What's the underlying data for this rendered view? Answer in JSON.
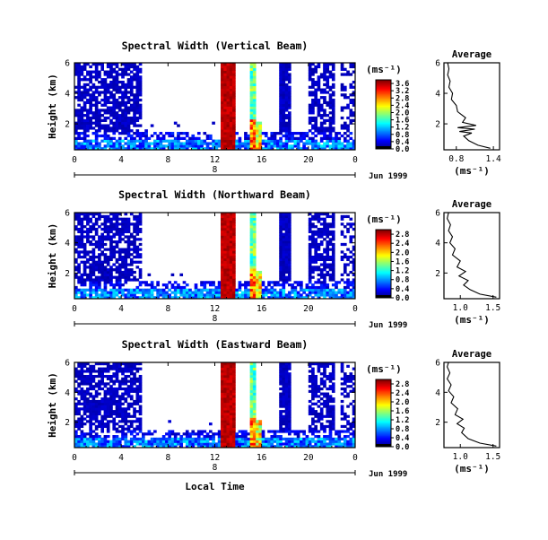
{
  "chart_data": [
    {
      "type": "heatmap",
      "title": "Spectral Width (Vertical Beam)",
      "ylabel": "Height (km)",
      "xticks": [
        "0",
        "4",
        "8",
        "12",
        "16",
        "20",
        "0"
      ],
      "yticks": [
        "2",
        "4",
        "6"
      ],
      "day_label": "8",
      "date_label": "Jun 1999",
      "colorbar": {
        "unit": "(ms⁻¹)",
        "ticks": [
          "0.0",
          "0.4",
          "0.8",
          "1.2",
          "1.6",
          "2.0",
          "2.4",
          "2.8",
          "3.2",
          "3.6"
        ],
        "max": 3.8
      },
      "average": {
        "title": "Average",
        "xlabel": "(ms⁻¹)",
        "xticks": [
          "0.8",
          "1.4"
        ],
        "xlim": [
          0.6,
          1.5
        ],
        "yticks": [
          "2",
          "4",
          "6"
        ],
        "ylim": [
          0.3,
          6
        ],
        "profile": [
          [
            1.35,
            0.4
          ],
          [
            1.15,
            0.6
          ],
          [
            1.0,
            0.9
          ],
          [
            0.92,
            1.2
          ],
          [
            1.05,
            1.4
          ],
          [
            0.85,
            1.5
          ],
          [
            1.1,
            1.65
          ],
          [
            0.82,
            1.75
          ],
          [
            1.12,
            1.9
          ],
          [
            0.9,
            2.1
          ],
          [
            0.95,
            2.4
          ],
          [
            0.82,
            2.8
          ],
          [
            0.8,
            3.2
          ],
          [
            0.72,
            3.6
          ],
          [
            0.74,
            4.0
          ],
          [
            0.68,
            4.4
          ],
          [
            0.7,
            4.8
          ],
          [
            0.66,
            5.2
          ],
          [
            0.68,
            5.6
          ],
          [
            0.66,
            6.0
          ]
        ]
      }
    },
    {
      "type": "heatmap",
      "title": "Spectral Width (Northward Beam)",
      "ylabel": "Height (km)",
      "xticks": [
        "0",
        "4",
        "8",
        "12",
        "16",
        "20",
        "0"
      ],
      "yticks": [
        "2",
        "4",
        "6"
      ],
      "day_label": "8",
      "date_label": "Jun 1999",
      "colorbar": {
        "unit": "(ms⁻¹)",
        "ticks": [
          "0.0",
          "0.4",
          "0.8",
          "1.2",
          "1.6",
          "2.0",
          "2.4",
          "2.8"
        ],
        "max": 3.0
      },
      "average": {
        "title": "Average",
        "xlabel": "(ms⁻¹)",
        "xticks": [
          "1.0",
          "1.5"
        ],
        "xlim": [
          0.75,
          1.6
        ],
        "yticks": [
          "2",
          "4",
          "6"
        ],
        "ylim": [
          0.3,
          6
        ],
        "profile": [
          [
            1.55,
            0.4
          ],
          [
            1.3,
            0.6
          ],
          [
            1.15,
            0.9
          ],
          [
            1.05,
            1.2
          ],
          [
            1.12,
            1.5
          ],
          [
            0.98,
            1.8
          ],
          [
            1.08,
            2.1
          ],
          [
            0.95,
            2.4
          ],
          [
            1.0,
            2.8
          ],
          [
            0.88,
            3.2
          ],
          [
            0.92,
            3.6
          ],
          [
            0.84,
            4.0
          ],
          [
            0.88,
            4.4
          ],
          [
            0.82,
            4.8
          ],
          [
            0.85,
            5.2
          ],
          [
            0.8,
            5.6
          ],
          [
            0.82,
            6.0
          ]
        ]
      }
    },
    {
      "type": "heatmap",
      "title": "Spectral Width (Eastward Beam)",
      "ylabel": "Height (km)",
      "xticks": [
        "0",
        "4",
        "8",
        "12",
        "16",
        "20",
        "0"
      ],
      "yticks": [
        "2",
        "4",
        "6"
      ],
      "day_label": "8",
      "date_label": "Jun 1999",
      "xlabel": "Local Time",
      "colorbar": {
        "unit": "(ms⁻¹)",
        "ticks": [
          "0.0",
          "0.4",
          "0.8",
          "1.2",
          "1.6",
          "2.0",
          "2.4",
          "2.8"
        ],
        "max": 3.0
      },
      "average": {
        "title": "Average",
        "xlabel": "(ms⁻¹)",
        "xticks": [
          "1.0",
          "1.5"
        ],
        "xlim": [
          0.75,
          1.6
        ],
        "yticks": [
          "2",
          "4",
          "6"
        ],
        "ylim": [
          0.3,
          6
        ],
        "profile": [
          [
            1.55,
            0.4
          ],
          [
            1.3,
            0.6
          ],
          [
            1.12,
            0.9
          ],
          [
            1.02,
            1.3
          ],
          [
            1.06,
            1.6
          ],
          [
            0.95,
            1.9
          ],
          [
            1.04,
            2.2
          ],
          [
            0.92,
            2.5
          ],
          [
            0.96,
            2.9
          ],
          [
            0.86,
            3.3
          ],
          [
            0.9,
            3.7
          ],
          [
            0.82,
            4.1
          ],
          [
            0.86,
            4.5
          ],
          [
            0.8,
            4.9
          ],
          [
            0.84,
            5.3
          ],
          [
            0.8,
            5.7
          ],
          [
            0.82,
            6.0
          ]
        ]
      }
    }
  ]
}
